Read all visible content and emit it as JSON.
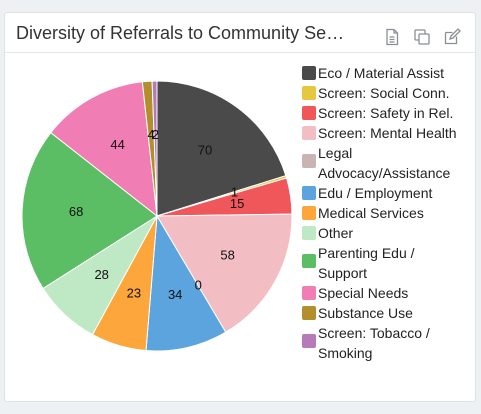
{
  "widget": {
    "title": "Diversity of Referrals to Community Se…",
    "tools": [
      {
        "name": "document-icon"
      },
      {
        "name": "copy-icon"
      },
      {
        "name": "edit-icon"
      }
    ]
  },
  "chart_data": {
    "type": "pie",
    "title": "Diversity of Referrals to Community Se…",
    "legend_position": "right",
    "categories": [
      "Eco / Material Assist",
      "Screen: Social Conn.",
      "Screen: Safety in Rel.",
      "Screen: Mental Health",
      "Legal Advocacy/Assistance",
      "Edu / Employment",
      "Medical Services",
      "Other",
      "Parenting Edu / Support",
      "Special Needs",
      "Substance Use",
      "Screen: Tobacco / Smoking"
    ],
    "legend_lines": [
      [
        "Eco / Material Assist"
      ],
      [
        "Screen: Social Conn."
      ],
      [
        "Screen: Safety in Rel."
      ],
      [
        "Screen: Mental Health"
      ],
      [
        "Legal",
        "Advocacy/Assistance"
      ],
      [
        "Edu / Employment"
      ],
      [
        "Medical Services"
      ],
      [
        "Other"
      ],
      [
        "Parenting Edu /",
        "Support"
      ],
      [
        "Special Needs"
      ],
      [
        "Substance Use"
      ],
      [
        "Screen: Tobacco /",
        "Smoking"
      ]
    ],
    "values": [
      70,
      1,
      15,
      58,
      0,
      34,
      23,
      28,
      68,
      44,
      4,
      2
    ],
    "colors": [
      "#4a4a4a",
      "#e5c83f",
      "#f0575a",
      "#f2bec3",
      "#c9b3b3",
      "#5ba4de",
      "#fca63c",
      "#bfe9c4",
      "#5bbd64",
      "#f07eb4",
      "#b38e2d",
      "#b57ab8"
    ]
  }
}
